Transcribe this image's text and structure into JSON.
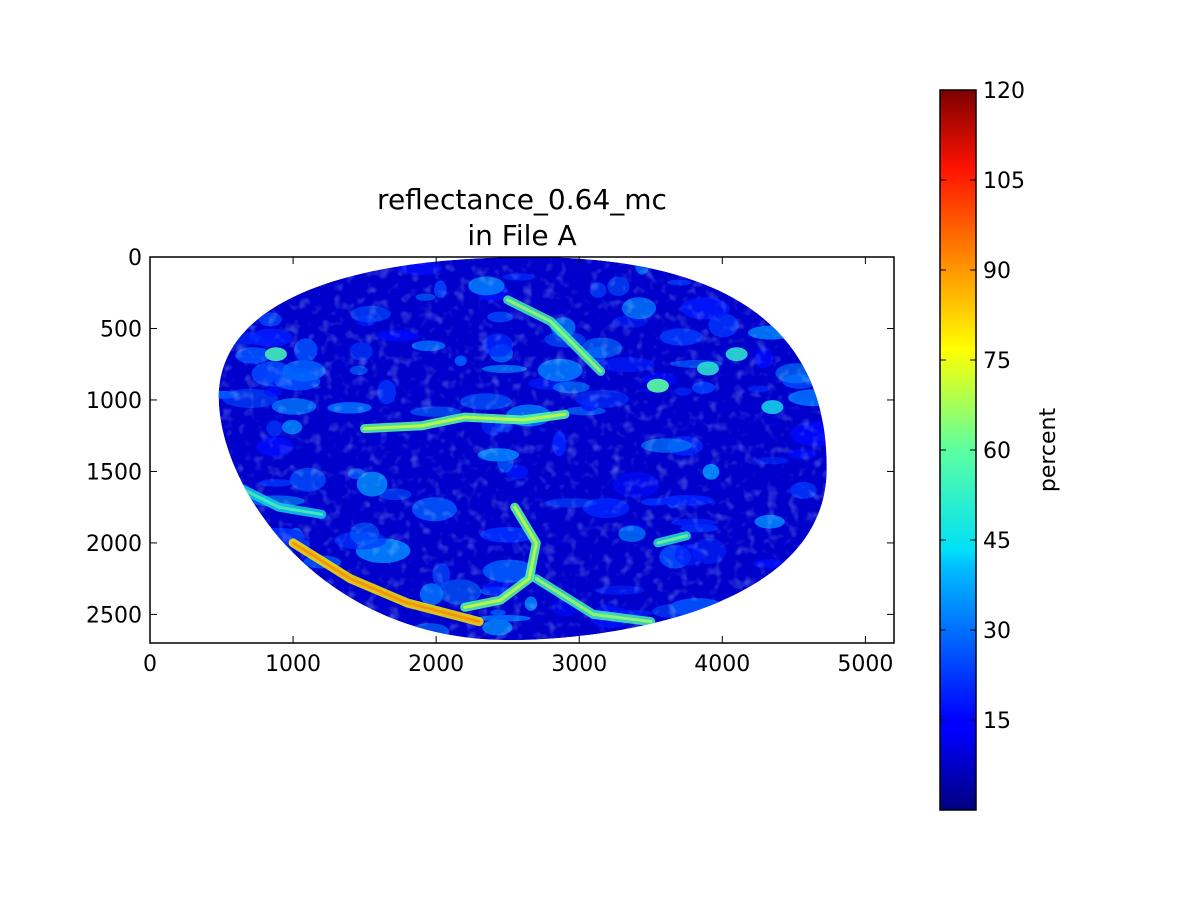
{
  "chart_data": {
    "type": "heatmap",
    "title_lines": [
      "reflectance_0.64_mc",
      "in File A"
    ],
    "xlabel": "",
    "ylabel": "",
    "xlim": [
      0,
      5200
    ],
    "ylim": [
      2700,
      0
    ],
    "x_ticks": [
      0,
      1000,
      2000,
      3000,
      4000,
      5000
    ],
    "y_ticks": [
      0,
      500,
      1000,
      1500,
      2000,
      2500
    ],
    "x_tick_labels": [
      "0",
      "1000",
      "2000",
      "3000",
      "4000",
      "5000"
    ],
    "y_tick_labels": [
      "0",
      "500",
      "1000",
      "1500",
      "2000",
      "2500"
    ],
    "image": {
      "description_units": "percent",
      "disk_extent_x": [
        480,
        4730
      ],
      "disk_extent_y": [
        0,
        2680
      ],
      "background_value": 8,
      "features": [
        {
          "kind": "band",
          "value": 60,
          "points": [
            [
              1500,
              1200
            ],
            [
              1900,
              1180
            ],
            [
              2200,
              1120
            ],
            [
              2600,
              1140
            ],
            [
              2900,
              1100
            ]
          ]
        },
        {
          "kind": "band",
          "value": 55,
          "points": [
            [
              2500,
              300
            ],
            [
              2800,
              450
            ],
            [
              3000,
              650
            ],
            [
              3150,
              800
            ]
          ]
        },
        {
          "kind": "band",
          "value": 60,
          "points": [
            [
              2550,
              1750
            ],
            [
              2700,
              2000
            ],
            [
              2650,
              2250
            ],
            [
              2450,
              2400
            ],
            [
              2200,
              2450
            ]
          ]
        },
        {
          "kind": "band",
          "value": 55,
          "points": [
            [
              2700,
              2250
            ],
            [
              3100,
              2500
            ],
            [
              3500,
              2550
            ]
          ]
        },
        {
          "kind": "band",
          "value": 80,
          "points": [
            [
              1000,
              2000
            ],
            [
              1400,
              2250
            ],
            [
              1800,
              2420
            ],
            [
              2300,
              2550
            ]
          ]
        },
        {
          "kind": "band",
          "value": 45,
          "points": [
            [
              600,
              1600
            ],
            [
              900,
              1750
            ],
            [
              1200,
              1800
            ]
          ]
        },
        {
          "kind": "band",
          "value": 50,
          "points": [
            [
              3550,
              2000
            ],
            [
              3750,
              1950
            ]
          ]
        },
        {
          "kind": "blob",
          "value": 55,
          "at": [
            880,
            680
          ]
        },
        {
          "kind": "blob",
          "value": 60,
          "at": [
            3550,
            900
          ]
        },
        {
          "kind": "blob",
          "value": 50,
          "at": [
            3900,
            780
          ]
        },
        {
          "kind": "blob",
          "value": 50,
          "at": [
            4100,
            680
          ]
        },
        {
          "kind": "blob",
          "value": 45,
          "at": [
            4350,
            1050
          ]
        }
      ]
    },
    "colorbar": {
      "colormap": "jet",
      "label": "percent",
      "range": [
        0,
        120
      ],
      "ticks": [
        15,
        30,
        45,
        60,
        75,
        90,
        105,
        120
      ],
      "tick_labels": [
        "15",
        "30",
        "45",
        "60",
        "75",
        "90",
        "105",
        "120"
      ]
    }
  }
}
